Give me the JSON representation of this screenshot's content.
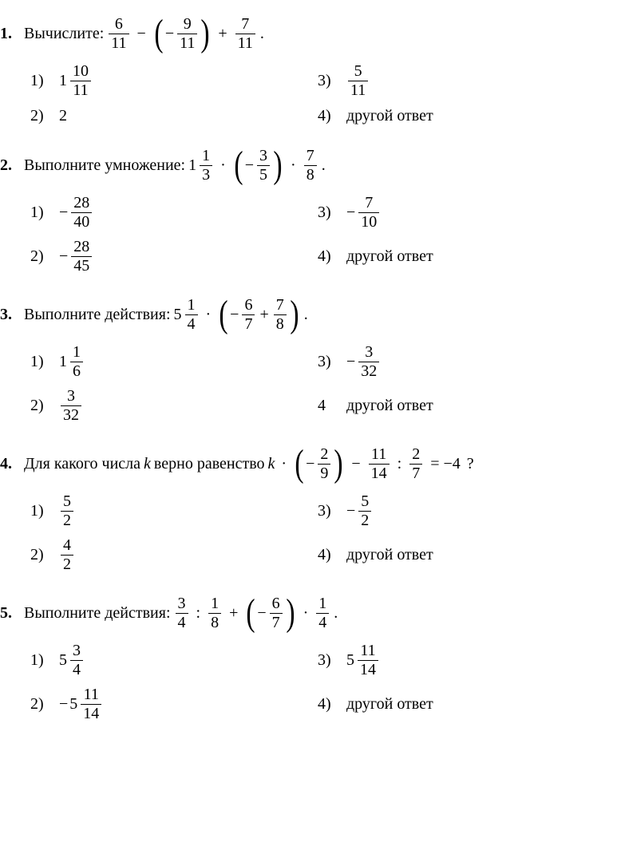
{
  "problems": [
    {
      "num": "1.",
      "prompt": "Вычислите:",
      "expr": {
        "f1": {
          "n": "6",
          "d": "11"
        },
        "op1": "−",
        "paren": {
          "sign": "−",
          "n": "9",
          "d": "11"
        },
        "op2": "+",
        "f2": {
          "n": "7",
          "d": "11"
        },
        "tail": "."
      },
      "answers": {
        "a1": {
          "label": "1)",
          "type": "mixed",
          "w": "1",
          "n": "10",
          "d": "11"
        },
        "a3": {
          "label": "3)",
          "type": "frac",
          "n": "5",
          "d": "11"
        },
        "a2": {
          "label": "2)",
          "type": "text",
          "text": "2"
        },
        "a4": {
          "label": "4)",
          "type": "text",
          "text": "другой ответ"
        }
      }
    },
    {
      "num": "2.",
      "prompt": "Выполните умножение:",
      "expr": {
        "m1": {
          "w": "1",
          "n": "1",
          "d": "3"
        },
        "op1": "·",
        "paren": {
          "sign": "−",
          "n": "3",
          "d": "5"
        },
        "op2": "·",
        "f2": {
          "n": "7",
          "d": "8"
        },
        "tail": "."
      },
      "answers": {
        "a1": {
          "label": "1)",
          "type": "negfrac",
          "n": "28",
          "d": "40"
        },
        "a3": {
          "label": "3)",
          "type": "negfrac",
          "n": "7",
          "d": "10"
        },
        "a2": {
          "label": "2)",
          "type": "negfrac",
          "n": "28",
          "d": "45"
        },
        "a4": {
          "label": "4)",
          "type": "text",
          "text": "другой ответ"
        }
      }
    },
    {
      "num": "3.",
      "prompt": "Выполните действия:",
      "expr": {
        "m1": {
          "w": "5",
          "n": "1",
          "d": "4"
        },
        "op1": "·",
        "paren2": {
          "sign": "−",
          "f1": {
            "n": "6",
            "d": "7"
          },
          "op": "+",
          "f2": {
            "n": "7",
            "d": "8"
          }
        },
        "tail": "."
      },
      "answers": {
        "a1": {
          "label": "1)",
          "type": "mixed",
          "w": "1",
          "n": "1",
          "d": "6"
        },
        "a3": {
          "label": "3)",
          "type": "negfrac",
          "n": "3",
          "d": "32"
        },
        "a2": {
          "label": "2)",
          "type": "frac",
          "n": "3",
          "d": "32"
        },
        "a4": {
          "label": "4",
          "type": "text",
          "text": "другой ответ"
        }
      }
    },
    {
      "num": "4.",
      "prompt_a": "Для какого числа",
      "var": "k",
      "prompt_b": "верно равенство",
      "expr": {
        "k": "k",
        "op1": "·",
        "paren": {
          "sign": "−",
          "n": "2",
          "d": "9"
        },
        "op2": "−",
        "f1": {
          "n": "11",
          "d": "14"
        },
        "op3": ":",
        "f2": {
          "n": "2",
          "d": "7"
        },
        "eq": "= −4",
        "tail": "?"
      },
      "answers": {
        "a1": {
          "label": "1)",
          "type": "frac",
          "n": "5",
          "d": "2"
        },
        "a3": {
          "label": "3)",
          "type": "negfrac",
          "n": "5",
          "d": "2"
        },
        "a2": {
          "label": "2)",
          "type": "frac",
          "n": "4",
          "d": "2"
        },
        "a4": {
          "label": "4)",
          "type": "text",
          "text": "другой ответ"
        }
      }
    },
    {
      "num": "5.",
      "prompt": "Выполните действия:",
      "expr": {
        "f1": {
          "n": "3",
          "d": "4"
        },
        "op1": ":",
        "f2": {
          "n": "1",
          "d": "8"
        },
        "op2": "+",
        "paren": {
          "sign": "−",
          "n": "6",
          "d": "7"
        },
        "op3": "·",
        "f3": {
          "n": "1",
          "d": "4"
        },
        "tail": "."
      },
      "answers": {
        "a1": {
          "label": "1)",
          "type": "mixed",
          "w": "5",
          "n": "3",
          "d": "4"
        },
        "a3": {
          "label": "3)",
          "type": "mixed",
          "w": "5",
          "n": "11",
          "d": "14"
        },
        "a2": {
          "label": "2)",
          "type": "negmixed",
          "w": "5",
          "n": "11",
          "d": "14"
        },
        "a4": {
          "label": "4)",
          "type": "text",
          "text": "другой ответ"
        }
      }
    }
  ]
}
